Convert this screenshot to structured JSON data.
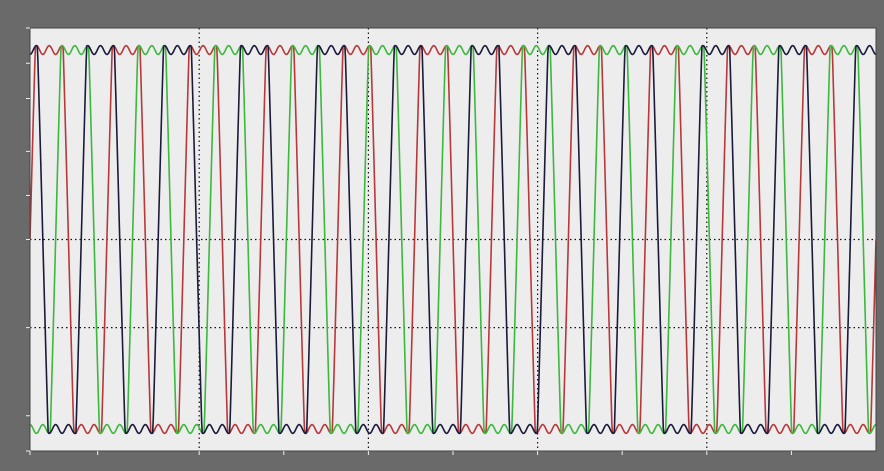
{
  "window": {
    "title": ""
  },
  "colors": {
    "frame": "#6a6a6a",
    "plot_background": "#ededee",
    "grid": "#111111",
    "series": [
      "#b8383a",
      "#3cb83c",
      "#1a1a3a"
    ]
  },
  "chart_data": {
    "type": "line",
    "title": "",
    "xlabel": "",
    "ylabel": "",
    "xlim": [
      0,
      0.1
    ],
    "ylim": [
      -1.2,
      1.2
    ],
    "grid": true,
    "grid_style": "dotted",
    "legend": "none",
    "x_grid_values": [
      0.02,
      0.04,
      0.06,
      0.08
    ],
    "y_grid_values": [
      0,
      -0.5
    ],
    "x_ticks": [
      {
        "value": 0.0,
        "label": ""
      },
      {
        "value": 0.008,
        "label": ""
      },
      {
        "value": 0.02,
        "label": ""
      },
      {
        "value": 0.03,
        "label": ""
      },
      {
        "value": 0.04,
        "label": ""
      },
      {
        "value": 0.05,
        "label": ""
      },
      {
        "value": 0.06,
        "label": ""
      },
      {
        "value": 0.07,
        "label": ""
      },
      {
        "value": 0.08,
        "label": ""
      },
      {
        "value": 0.09,
        "label": ""
      }
    ],
    "y_ticks": [
      {
        "value": 1.2,
        "label": ""
      },
      {
        "value": 1.0,
        "label": ""
      },
      {
        "value": 0.8,
        "label": ""
      },
      {
        "value": 0.5,
        "label": ""
      },
      {
        "value": 0.25,
        "label": ""
      },
      {
        "value": 0.0,
        "label": ""
      },
      {
        "value": -0.5,
        "label": ""
      },
      {
        "value": -1.0,
        "label": ""
      },
      {
        "value": -1.2,
        "label": ""
      }
    ],
    "waveform": {
      "kind": "three-phase clipped sinusoid with harmonic ripple",
      "frequency_hz": 110,
      "amplitude": 2.6,
      "clip_level": 1.1,
      "ripple_amplitude": 0.05,
      "ripple_harmonic": 6,
      "sample_count": 1400
    },
    "series": [
      {
        "phase_deg": 0
      },
      {
        "phase_deg": -120
      },
      {
        "phase_deg": 120
      }
    ]
  }
}
